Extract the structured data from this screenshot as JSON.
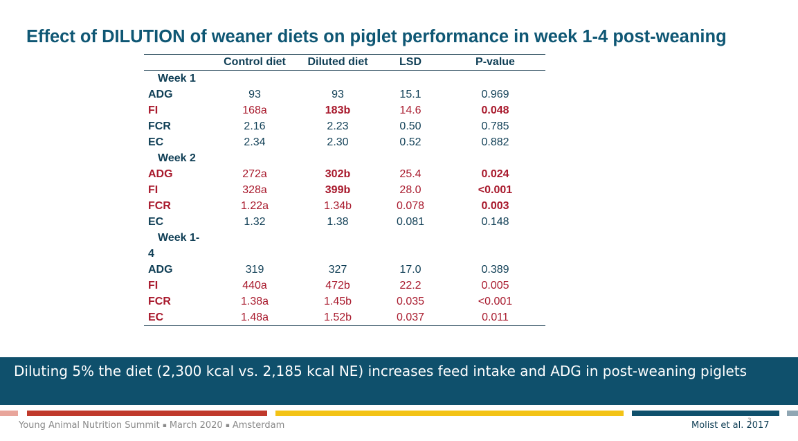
{
  "slide": {
    "title": "Effect of DILUTION of weaner diets on piglet performance in week 1-4 post-weaning",
    "colors": {
      "title": "#0f5774",
      "text_dark": "#0f3e55",
      "highlight_red": "#a8192c",
      "banner": "#0f506c",
      "bar_red": "#c0392b",
      "bar_yellow": "#f3c316",
      "bar_navy": "#0f506c",
      "bar_gray": "#8fa6b3",
      "bar_pink": "#e8a59b"
    }
  },
  "table": {
    "headers": [
      "",
      "Control diet",
      "Diluted diet",
      "LSD",
      "P-value"
    ],
    "sections": [
      {
        "label": "Week 1",
        "rows": [
          {
            "label": "ADG",
            "values": [
              "93",
              "93",
              "15.1",
              "0.969"
            ]
          },
          {
            "label": "FI",
            "values": [
              "168a",
              "183b",
              "14.6",
              "0.048"
            ]
          },
          {
            "label": "FCR",
            "values": [
              "2.16",
              "2.23",
              "0.50",
              "0.785"
            ]
          },
          {
            "label": "EC",
            "values": [
              "2.34",
              "2.30",
              "0.52",
              "0.882"
            ]
          }
        ]
      },
      {
        "label": "Week 2",
        "rows": [
          {
            "label": "ADG",
            "values": [
              "272a",
              "302b",
              "25.4",
              "0.024"
            ]
          },
          {
            "label": "FI",
            "values": [
              "328a",
              "399b",
              "28.0",
              "<0.001"
            ]
          },
          {
            "label": "FCR",
            "values": [
              "1.22a",
              "1.34b",
              "0.078",
              "0.003"
            ]
          },
          {
            "label": "EC",
            "values": [
              "1.32",
              "1.38",
              "0.081",
              "0.148"
            ]
          }
        ]
      },
      {
        "label_line1": "Week   1-",
        "label_line2": "4",
        "rows": [
          {
            "label": "ADG",
            "values": [
              "319",
              "327",
              "17.0",
              "0.389"
            ]
          },
          {
            "label": "FI",
            "values": [
              "440a",
              "472b",
              "22.2",
              "0.005"
            ]
          },
          {
            "label": "FCR",
            "values": [
              "1.38a",
              "1.45b",
              "0.035",
              "<0.001"
            ]
          },
          {
            "label": "EC",
            "values": [
              "1.48a",
              "1.52b",
              "0.037",
              "0.011"
            ]
          }
        ]
      }
    ]
  },
  "banner": {
    "text": "Diluting 5% the diet (2,300 kcal vs. 2,185 kcal NE) increases feed intake and ADG in post-weaning piglets"
  },
  "footer": {
    "event": "Young Animal Nutrition Summit",
    "separator": "▪",
    "date": "March 2020",
    "location": "Amsterdam",
    "citation": "Molist et al. 2017",
    "page_number": "3"
  }
}
